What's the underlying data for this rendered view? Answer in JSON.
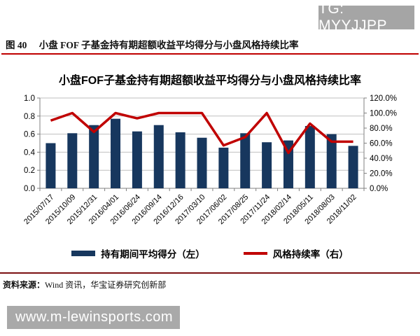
{
  "banner": {
    "text": "TG: MYYJJPP",
    "bg_color": "#a5a5a5"
  },
  "caption": {
    "fig_label": "图 40",
    "text": "小盘 FOF 子基金持有期超额收益平均得分与小盘风格持续比率"
  },
  "chart_data": {
    "type": "bar",
    "title": "小盘FOF子基金持有期超额收益平均得分与小盘风格持续比率",
    "categories": [
      "2015/07/17",
      "2015/10/09",
      "2015/12/31",
      "2016/04/01",
      "2016/06/24",
      "2016/09/14",
      "2016/12/16",
      "2017/03/10",
      "2017/06/02",
      "2017/08/25",
      "2017/11/24",
      "2018/02/14",
      "2018/05/11",
      "2018/08/03",
      "2018/11/02"
    ],
    "series": [
      {
        "name": "持有期间平均得分（左）",
        "type": "bar",
        "axis": "left",
        "color": "#17375e",
        "values": [
          0.5,
          0.61,
          0.7,
          0.77,
          0.63,
          0.7,
          0.62,
          0.56,
          0.45,
          0.61,
          0.51,
          0.53,
          0.69,
          0.6,
          0.47
        ]
      },
      {
        "name": "风格持续率（右）",
        "type": "line",
        "axis": "right",
        "color": "#c00000",
        "values": [
          90,
          100,
          75,
          100,
          93,
          100,
          100,
          100,
          57,
          68,
          100,
          47,
          86,
          62,
          62
        ]
      }
    ],
    "left_axis": {
      "min": 0,
      "max": 1.0,
      "ticks": [
        "0.0",
        "0.2",
        "0.4",
        "0.6",
        "0.8",
        "1.0"
      ]
    },
    "right_axis": {
      "min": 0,
      "max": 120,
      "ticks": [
        "0.0%",
        "20.0%",
        "40.0%",
        "60.0%",
        "80.0%",
        "100.0%",
        "120.0%"
      ]
    },
    "grid": true,
    "legend_position": "bottom"
  },
  "footer": {
    "source_label": "资料来源：",
    "source_text": "Wind 资讯，华宝证券研究创新部"
  },
  "watermark": {
    "text": "www.m-lewinsports.com"
  }
}
